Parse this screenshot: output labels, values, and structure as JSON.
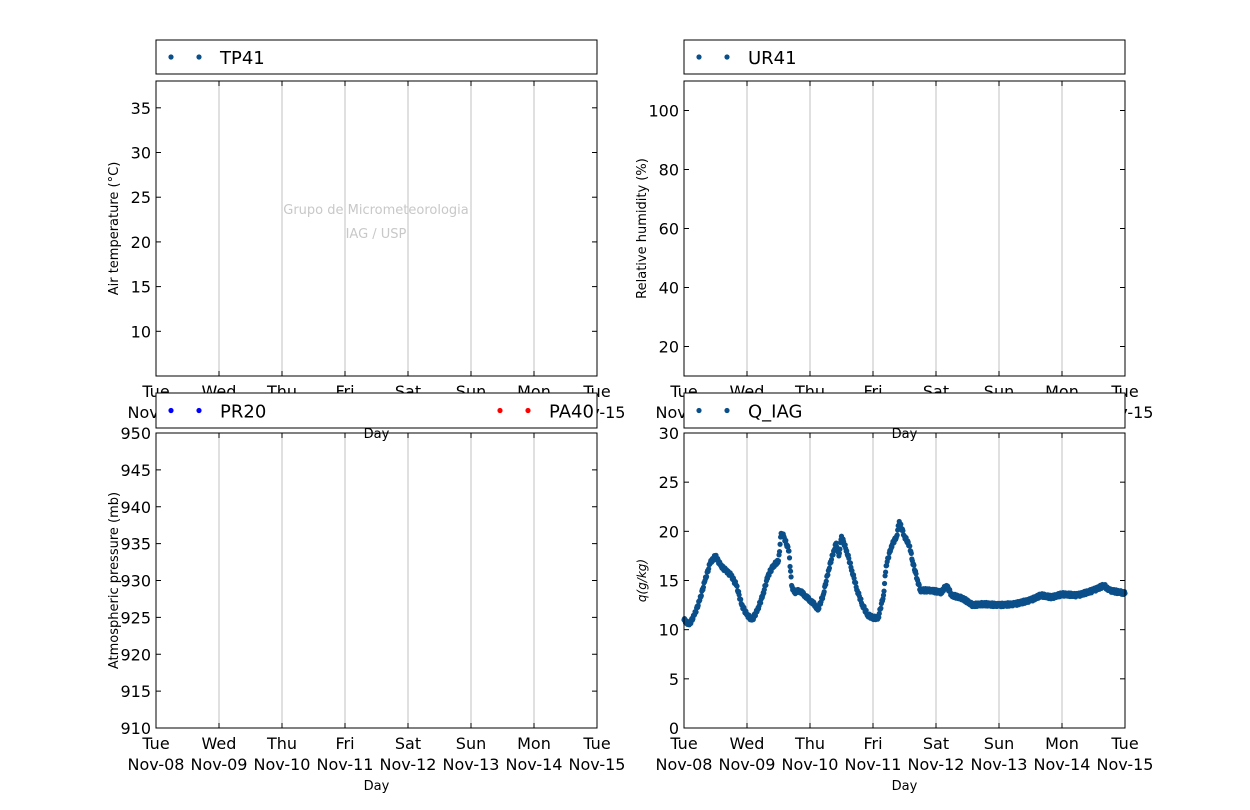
{
  "colors": {
    "series_blue": "#0b4f8a",
    "pure_blue": "#0000ff",
    "red": "#ff0000",
    "grid": "#c0c0c0",
    "watermark": "#c8c8c8"
  },
  "watermark": {
    "line1": "Grupo de Micrometeorologia",
    "line2": "IAG / USP"
  },
  "x_axis": {
    "label": "Day",
    "ticks": [
      {
        "day": "Tue",
        "date": "Nov-08"
      },
      {
        "day": "Wed",
        "date": "Nov-09"
      },
      {
        "day": "Thu",
        "date": "Nov-10"
      },
      {
        "day": "Fri",
        "date": "Nov-11"
      },
      {
        "day": "Sat",
        "date": "Nov-12"
      },
      {
        "day": "Sun",
        "date": "Nov-13"
      },
      {
        "day": "Mon",
        "date": "Nov-14"
      },
      {
        "day": "Tue",
        "date": "Nov-15"
      }
    ],
    "range": [
      "2016-11-08",
      "2016-11-15"
    ]
  },
  "chart_data": [
    {
      "type": "scatter",
      "ylabel": "Air temperature (°C)",
      "ylim": [
        5,
        38
      ],
      "yticks": [
        10,
        15,
        20,
        25,
        30,
        35
      ],
      "grid": "vertical",
      "legend": [
        {
          "name": "TP41",
          "color": "#0b4f8a"
        }
      ],
      "series": [
        {
          "name": "TP41",
          "points": []
        }
      ]
    },
    {
      "type": "scatter",
      "ylabel": "Relative humidity (%)",
      "ylim": [
        10,
        110
      ],
      "yticks": [
        20,
        40,
        60,
        80,
        100
      ],
      "grid": "vertical",
      "legend": [
        {
          "name": "UR41",
          "color": "#0b4f8a"
        }
      ],
      "series": [
        {
          "name": "UR41",
          "points": []
        }
      ]
    },
    {
      "type": "scatter",
      "ylabel": "Atmospheric pressure (mb)",
      "ylim": [
        910,
        950
      ],
      "yticks": [
        910,
        915,
        920,
        925,
        930,
        935,
        940,
        945,
        950
      ],
      "grid": "vertical",
      "legend": [
        {
          "name": "PR20",
          "color": "#0000ff"
        },
        {
          "name": "PA40",
          "color": "#ff0000"
        }
      ],
      "series": [
        {
          "name": "PR20",
          "points": []
        },
        {
          "name": "PA40",
          "points": []
        }
      ]
    },
    {
      "type": "scatter",
      "ylabel": "q(g/kg)",
      "ylim": [
        0,
        30
      ],
      "yticks": [
        0,
        5,
        10,
        15,
        20,
        25,
        30
      ],
      "grid": "vertical",
      "legend": [
        {
          "name": "Q_IAG",
          "color": "#0b4f8a"
        }
      ],
      "series": [
        {
          "name": "Q_IAG",
          "points": [
            [
              "2016-11-08 00:00",
              11.0
            ],
            [
              "2016-11-08 02:00",
              10.5
            ],
            [
              "2016-11-08 04:00",
              11.5
            ],
            [
              "2016-11-08 06:00",
              13.0
            ],
            [
              "2016-11-08 08:00",
              15.0
            ],
            [
              "2016-11-08 10:00",
              16.8
            ],
            [
              "2016-11-08 12:00",
              17.5
            ],
            [
              "2016-11-08 14:00",
              16.5
            ],
            [
              "2016-11-08 16:00",
              16.0
            ],
            [
              "2016-11-08 18:00",
              15.5
            ],
            [
              "2016-11-08 20:00",
              14.5
            ],
            [
              "2016-11-08 22:00",
              12.5
            ],
            [
              "2016-11-09 00:00",
              11.5
            ],
            [
              "2016-11-09 02:00",
              11.0
            ],
            [
              "2016-11-09 04:00",
              12.0
            ],
            [
              "2016-11-09 06:00",
              13.5
            ],
            [
              "2016-11-09 08:00",
              15.5
            ],
            [
              "2016-11-09 10:00",
              16.5
            ],
            [
              "2016-11-09 12:00",
              17.0
            ],
            [
              "2016-11-09 13:00",
              19.8
            ],
            [
              "2016-11-09 14:00",
              19.5
            ],
            [
              "2016-11-09 16:00",
              18.0
            ],
            [
              "2016-11-09 17:00",
              14.5
            ],
            [
              "2016-11-09 18:00",
              13.8
            ],
            [
              "2016-11-09 20:00",
              14.0
            ],
            [
              "2016-11-09 22:00",
              13.5
            ],
            [
              "2016-11-10 00:00",
              13.0
            ],
            [
              "2016-11-10 02:00",
              12.5
            ],
            [
              "2016-11-10 03:00",
              12.0
            ],
            [
              "2016-11-10 05:00",
              13.5
            ],
            [
              "2016-11-10 07:00",
              16.0
            ],
            [
              "2016-11-10 09:00",
              18.0
            ],
            [
              "2016-11-10 10:00",
              18.8
            ],
            [
              "2016-11-10 11:00",
              17.5
            ],
            [
              "2016-11-10 12:00",
              19.5
            ],
            [
              "2016-11-10 14:00",
              18.0
            ],
            [
              "2016-11-10 16:00",
              16.0
            ],
            [
              "2016-11-10 18:00",
              14.0
            ],
            [
              "2016-11-10 20:00",
              12.5
            ],
            [
              "2016-11-10 22:00",
              11.5
            ],
            [
              "2016-11-11 00:00",
              11.2
            ],
            [
              "2016-11-11 02:00",
              11.2
            ],
            [
              "2016-11-11 04:00",
              13.5
            ],
            [
              "2016-11-11 05:00",
              16.5
            ],
            [
              "2016-11-11 07:00",
              18.5
            ],
            [
              "2016-11-11 09:00",
              19.5
            ],
            [
              "2016-11-11 10:00",
              21.0
            ],
            [
              "2016-11-11 12:00",
              19.5
            ],
            [
              "2016-11-11 14:00",
              18.5
            ],
            [
              "2016-11-11 15:00",
              17.0
            ],
            [
              "2016-11-11 17:00",
              15.0
            ],
            [
              "2016-11-11 18:00",
              14.0
            ],
            [
              "2016-11-11 22:00",
              14.0
            ],
            [
              "2016-11-12 02:00",
              13.8
            ],
            [
              "2016-11-12 04:00",
              14.5
            ],
            [
              "2016-11-12 06:00",
              13.5
            ],
            [
              "2016-11-12 10:00",
              13.2
            ],
            [
              "2016-11-12 14:00",
              12.5
            ],
            [
              "2016-11-12 18:00",
              12.6
            ],
            [
              "2016-11-13 00:00",
              12.5
            ],
            [
              "2016-11-13 06:00",
              12.6
            ],
            [
              "2016-11-13 12:00",
              13.0
            ],
            [
              "2016-11-13 16:00",
              13.5
            ],
            [
              "2016-11-13 20:00",
              13.3
            ],
            [
              "2016-11-14 00:00",
              13.6
            ],
            [
              "2016-11-14 06:00",
              13.5
            ],
            [
              "2016-11-14 12:00",
              14.0
            ],
            [
              "2016-11-14 16:00",
              14.5
            ],
            [
              "2016-11-14 18:00",
              14.0
            ],
            [
              "2016-11-14 22:00",
              13.8
            ],
            [
              "2016-11-15 00:00",
              13.7
            ]
          ]
        }
      ]
    }
  ]
}
